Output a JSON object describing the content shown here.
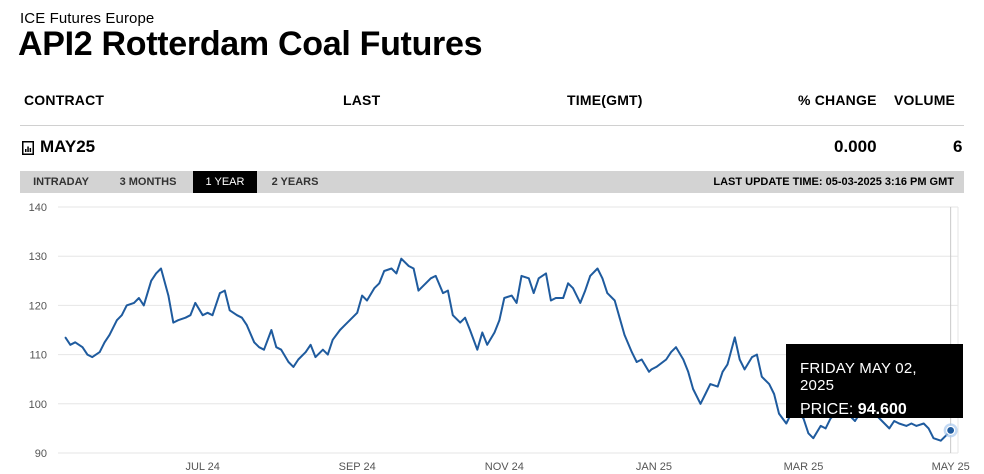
{
  "header": {
    "exchange": "ICE Futures Europe",
    "title": "API2 Rotterdam Coal Futures"
  },
  "table": {
    "columns": [
      "CONTRACT",
      "LAST",
      "TIME(GMT)",
      "% CHANGE",
      "VOLUME"
    ],
    "row": {
      "contract": "MAY25",
      "last": "",
      "time": "",
      "change": "0.000",
      "volume": "6"
    }
  },
  "tabs": {
    "items": [
      "INTRADAY",
      "3 MONTHS",
      "1 YEAR",
      "2 YEARS"
    ],
    "active": "1 YEAR",
    "last_update": "LAST UPDATE TIME: 05-03-2025 3:16 PM GMT"
  },
  "tooltip": {
    "date": "FRIDAY MAY 02, 2025",
    "price_label": "PRICE:",
    "price_value": "94.600"
  },
  "colors": {
    "line": "#1f5b9e",
    "grid": "#e6e6e6",
    "tab_bg": "#d3d3d3",
    "tab_active": "#000000"
  },
  "chart_data": {
    "type": "line",
    "ylim": [
      90,
      140
    ],
    "yticks": [
      90,
      100,
      110,
      120,
      130,
      140
    ],
    "xlim": [
      "2024-05-03",
      "2025-05-05"
    ],
    "xticks": [
      {
        "date": "2024-07-01",
        "label": "JUL 24"
      },
      {
        "date": "2024-09-02",
        "label": "SEP 24"
      },
      {
        "date": "2024-11-01",
        "label": "NOV 24"
      },
      {
        "date": "2025-01-01",
        "label": "JAN 25"
      },
      {
        "date": "2025-03-03",
        "label": "MAR 25"
      },
      {
        "date": "2025-05-02",
        "label": "MAY 25"
      }
    ],
    "grid": true,
    "highlight": {
      "date": "2025-05-02",
      "value": 94.6
    },
    "series": [
      {
        "points": [
          [
            "2024-05-06",
            113.5
          ],
          [
            "2024-05-08",
            112.0
          ],
          [
            "2024-05-10",
            112.5
          ],
          [
            "2024-05-13",
            111.5
          ],
          [
            "2024-05-15",
            110.0
          ],
          [
            "2024-05-17",
            109.5
          ],
          [
            "2024-05-20",
            110.5
          ],
          [
            "2024-05-22",
            112.5
          ],
          [
            "2024-05-24",
            114.0
          ],
          [
            "2024-05-27",
            117.0
          ],
          [
            "2024-05-29",
            118.0
          ],
          [
            "2024-05-31",
            120.0
          ],
          [
            "2024-06-03",
            120.5
          ],
          [
            "2024-06-05",
            121.5
          ],
          [
            "2024-06-07",
            120.0
          ],
          [
            "2024-06-10",
            125.0
          ],
          [
            "2024-06-12",
            126.5
          ],
          [
            "2024-06-14",
            127.5
          ],
          [
            "2024-06-17",
            122.0
          ],
          [
            "2024-06-19",
            116.5
          ],
          [
            "2024-06-21",
            117.0
          ],
          [
            "2024-06-24",
            117.5
          ],
          [
            "2024-06-26",
            118.0
          ],
          [
            "2024-06-28",
            120.5
          ],
          [
            "2024-07-01",
            118.0
          ],
          [
            "2024-07-03",
            118.5
          ],
          [
            "2024-07-05",
            118.0
          ],
          [
            "2024-07-08",
            122.5
          ],
          [
            "2024-07-10",
            123.0
          ],
          [
            "2024-07-12",
            119.0
          ],
          [
            "2024-07-15",
            118.0
          ],
          [
            "2024-07-17",
            117.5
          ],
          [
            "2024-07-19",
            116.0
          ],
          [
            "2024-07-22",
            112.5
          ],
          [
            "2024-07-24",
            111.5
          ],
          [
            "2024-07-26",
            111.0
          ],
          [
            "2024-07-29",
            115.0
          ],
          [
            "2024-07-31",
            111.5
          ],
          [
            "2024-08-02",
            111.0
          ],
          [
            "2024-08-05",
            108.5
          ],
          [
            "2024-08-07",
            107.5
          ],
          [
            "2024-08-09",
            109.0
          ],
          [
            "2024-08-12",
            110.5
          ],
          [
            "2024-08-14",
            112.0
          ],
          [
            "2024-08-16",
            109.5
          ],
          [
            "2024-08-19",
            111.0
          ],
          [
            "2024-08-21",
            110.0
          ],
          [
            "2024-08-23",
            113.0
          ],
          [
            "2024-08-26",
            115.0
          ],
          [
            "2024-08-28",
            116.0
          ],
          [
            "2024-08-30",
            117.0
          ],
          [
            "2024-09-02",
            118.5
          ],
          [
            "2024-09-04",
            122.0
          ],
          [
            "2024-09-06",
            121.0
          ],
          [
            "2024-09-09",
            123.5
          ],
          [
            "2024-09-11",
            124.5
          ],
          [
            "2024-09-13",
            127.0
          ],
          [
            "2024-09-16",
            127.5
          ],
          [
            "2024-09-18",
            126.5
          ],
          [
            "2024-09-20",
            129.5
          ],
          [
            "2024-09-23",
            128.0
          ],
          [
            "2024-09-25",
            127.5
          ],
          [
            "2024-09-27",
            123.0
          ],
          [
            "2024-09-30",
            124.5
          ],
          [
            "2024-10-02",
            125.5
          ],
          [
            "2024-10-04",
            126.0
          ],
          [
            "2024-10-07",
            122.5
          ],
          [
            "2024-10-09",
            123.0
          ],
          [
            "2024-10-11",
            118.0
          ],
          [
            "2024-10-14",
            116.5
          ],
          [
            "2024-10-16",
            117.5
          ],
          [
            "2024-10-18",
            115.0
          ],
          [
            "2024-10-21",
            111.0
          ],
          [
            "2024-10-23",
            114.5
          ],
          [
            "2024-10-25",
            112.0
          ],
          [
            "2024-10-28",
            114.5
          ],
          [
            "2024-10-30",
            117.0
          ],
          [
            "2024-11-01",
            121.5
          ],
          [
            "2024-11-04",
            122.0
          ],
          [
            "2024-11-06",
            120.5
          ],
          [
            "2024-11-08",
            126.0
          ],
          [
            "2024-11-11",
            125.5
          ],
          [
            "2024-11-13",
            122.5
          ],
          [
            "2024-11-15",
            125.5
          ],
          [
            "2024-11-18",
            126.5
          ],
          [
            "2024-11-20",
            121.0
          ],
          [
            "2024-11-22",
            121.5
          ],
          [
            "2024-11-25",
            121.5
          ],
          [
            "2024-11-27",
            124.5
          ],
          [
            "2024-11-29",
            123.5
          ],
          [
            "2024-12-02",
            120.5
          ],
          [
            "2024-12-04",
            123.0
          ],
          [
            "2024-12-06",
            126.0
          ],
          [
            "2024-12-09",
            127.5
          ],
          [
            "2024-12-11",
            125.5
          ],
          [
            "2024-12-13",
            122.5
          ],
          [
            "2024-12-16",
            121.0
          ],
          [
            "2024-12-18",
            117.5
          ],
          [
            "2024-12-20",
            114.0
          ],
          [
            "2024-12-23",
            110.5
          ],
          [
            "2024-12-25",
            108.5
          ],
          [
            "2024-12-27",
            109.0
          ],
          [
            "2024-12-30",
            106.5
          ],
          [
            "2024-12-31",
            107.0
          ],
          [
            "2025-01-02",
            107.5
          ],
          [
            "2025-01-06",
            109.0
          ],
          [
            "2025-01-08",
            110.5
          ],
          [
            "2025-01-10",
            111.5
          ],
          [
            "2025-01-13",
            109.0
          ],
          [
            "2025-01-15",
            106.5
          ],
          [
            "2025-01-17",
            103.0
          ],
          [
            "2025-01-20",
            100.0
          ],
          [
            "2025-01-22",
            102.0
          ],
          [
            "2025-01-24",
            104.0
          ],
          [
            "2025-01-27",
            103.5
          ],
          [
            "2025-01-29",
            106.5
          ],
          [
            "2025-01-31",
            108.0
          ],
          [
            "2025-02-03",
            113.5
          ],
          [
            "2025-02-05",
            109.0
          ],
          [
            "2025-02-07",
            107.0
          ],
          [
            "2025-02-10",
            109.5
          ],
          [
            "2025-02-12",
            110.0
          ],
          [
            "2025-02-14",
            105.5
          ],
          [
            "2025-02-17",
            104.0
          ],
          [
            "2025-02-19",
            102.0
          ],
          [
            "2025-02-21",
            98.0
          ],
          [
            "2025-02-24",
            96.0
          ],
          [
            "2025-02-26",
            98.0
          ],
          [
            "2025-02-28",
            99.0
          ],
          [
            "2025-03-03",
            97.0
          ],
          [
            "2025-03-05",
            94.0
          ],
          [
            "2025-03-07",
            93.0
          ],
          [
            "2025-03-10",
            95.5
          ],
          [
            "2025-03-12",
            95.0
          ],
          [
            "2025-03-14",
            97.0
          ],
          [
            "2025-03-17",
            98.5
          ],
          [
            "2025-03-19",
            99.0
          ],
          [
            "2025-03-21",
            98.0
          ],
          [
            "2025-03-24",
            96.5
          ],
          [
            "2025-03-26",
            98.0
          ],
          [
            "2025-03-28",
            97.5
          ],
          [
            "2025-03-31",
            98.0
          ],
          [
            "2025-04-02",
            97.5
          ],
          [
            "2025-04-04",
            96.5
          ],
          [
            "2025-04-07",
            95.0
          ],
          [
            "2025-04-09",
            96.5
          ],
          [
            "2025-04-11",
            96.0
          ],
          [
            "2025-04-14",
            95.5
          ],
          [
            "2025-04-16",
            96.0
          ],
          [
            "2025-04-18",
            95.5
          ],
          [
            "2025-04-21",
            96.0
          ],
          [
            "2025-04-23",
            95.0
          ],
          [
            "2025-04-25",
            93.0
          ],
          [
            "2025-04-28",
            92.5
          ],
          [
            "2025-04-30",
            93.5
          ],
          [
            "2025-05-02",
            94.6
          ]
        ]
      }
    ]
  }
}
